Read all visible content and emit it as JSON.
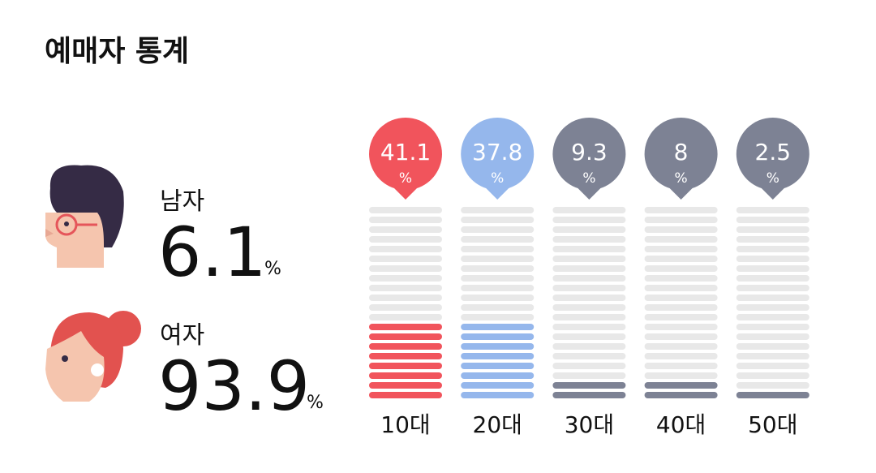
{
  "title": "예매자 통계",
  "unit": "%",
  "gender": [
    {
      "label": "남자",
      "value": 6.1
    },
    {
      "label": "여자",
      "value": 93.9
    }
  ],
  "chart_data": {
    "type": "bar",
    "categories": [
      "10대",
      "20대",
      "30대",
      "40대",
      "50대"
    ],
    "values": [
      41.1,
      37.8,
      9.3,
      8,
      2.5
    ],
    "colors": [
      "#f1545c",
      "#95b7ec",
      "#7d8294",
      "#7d8294",
      "#7d8294"
    ],
    "ylim": [
      0,
      100
    ]
  }
}
